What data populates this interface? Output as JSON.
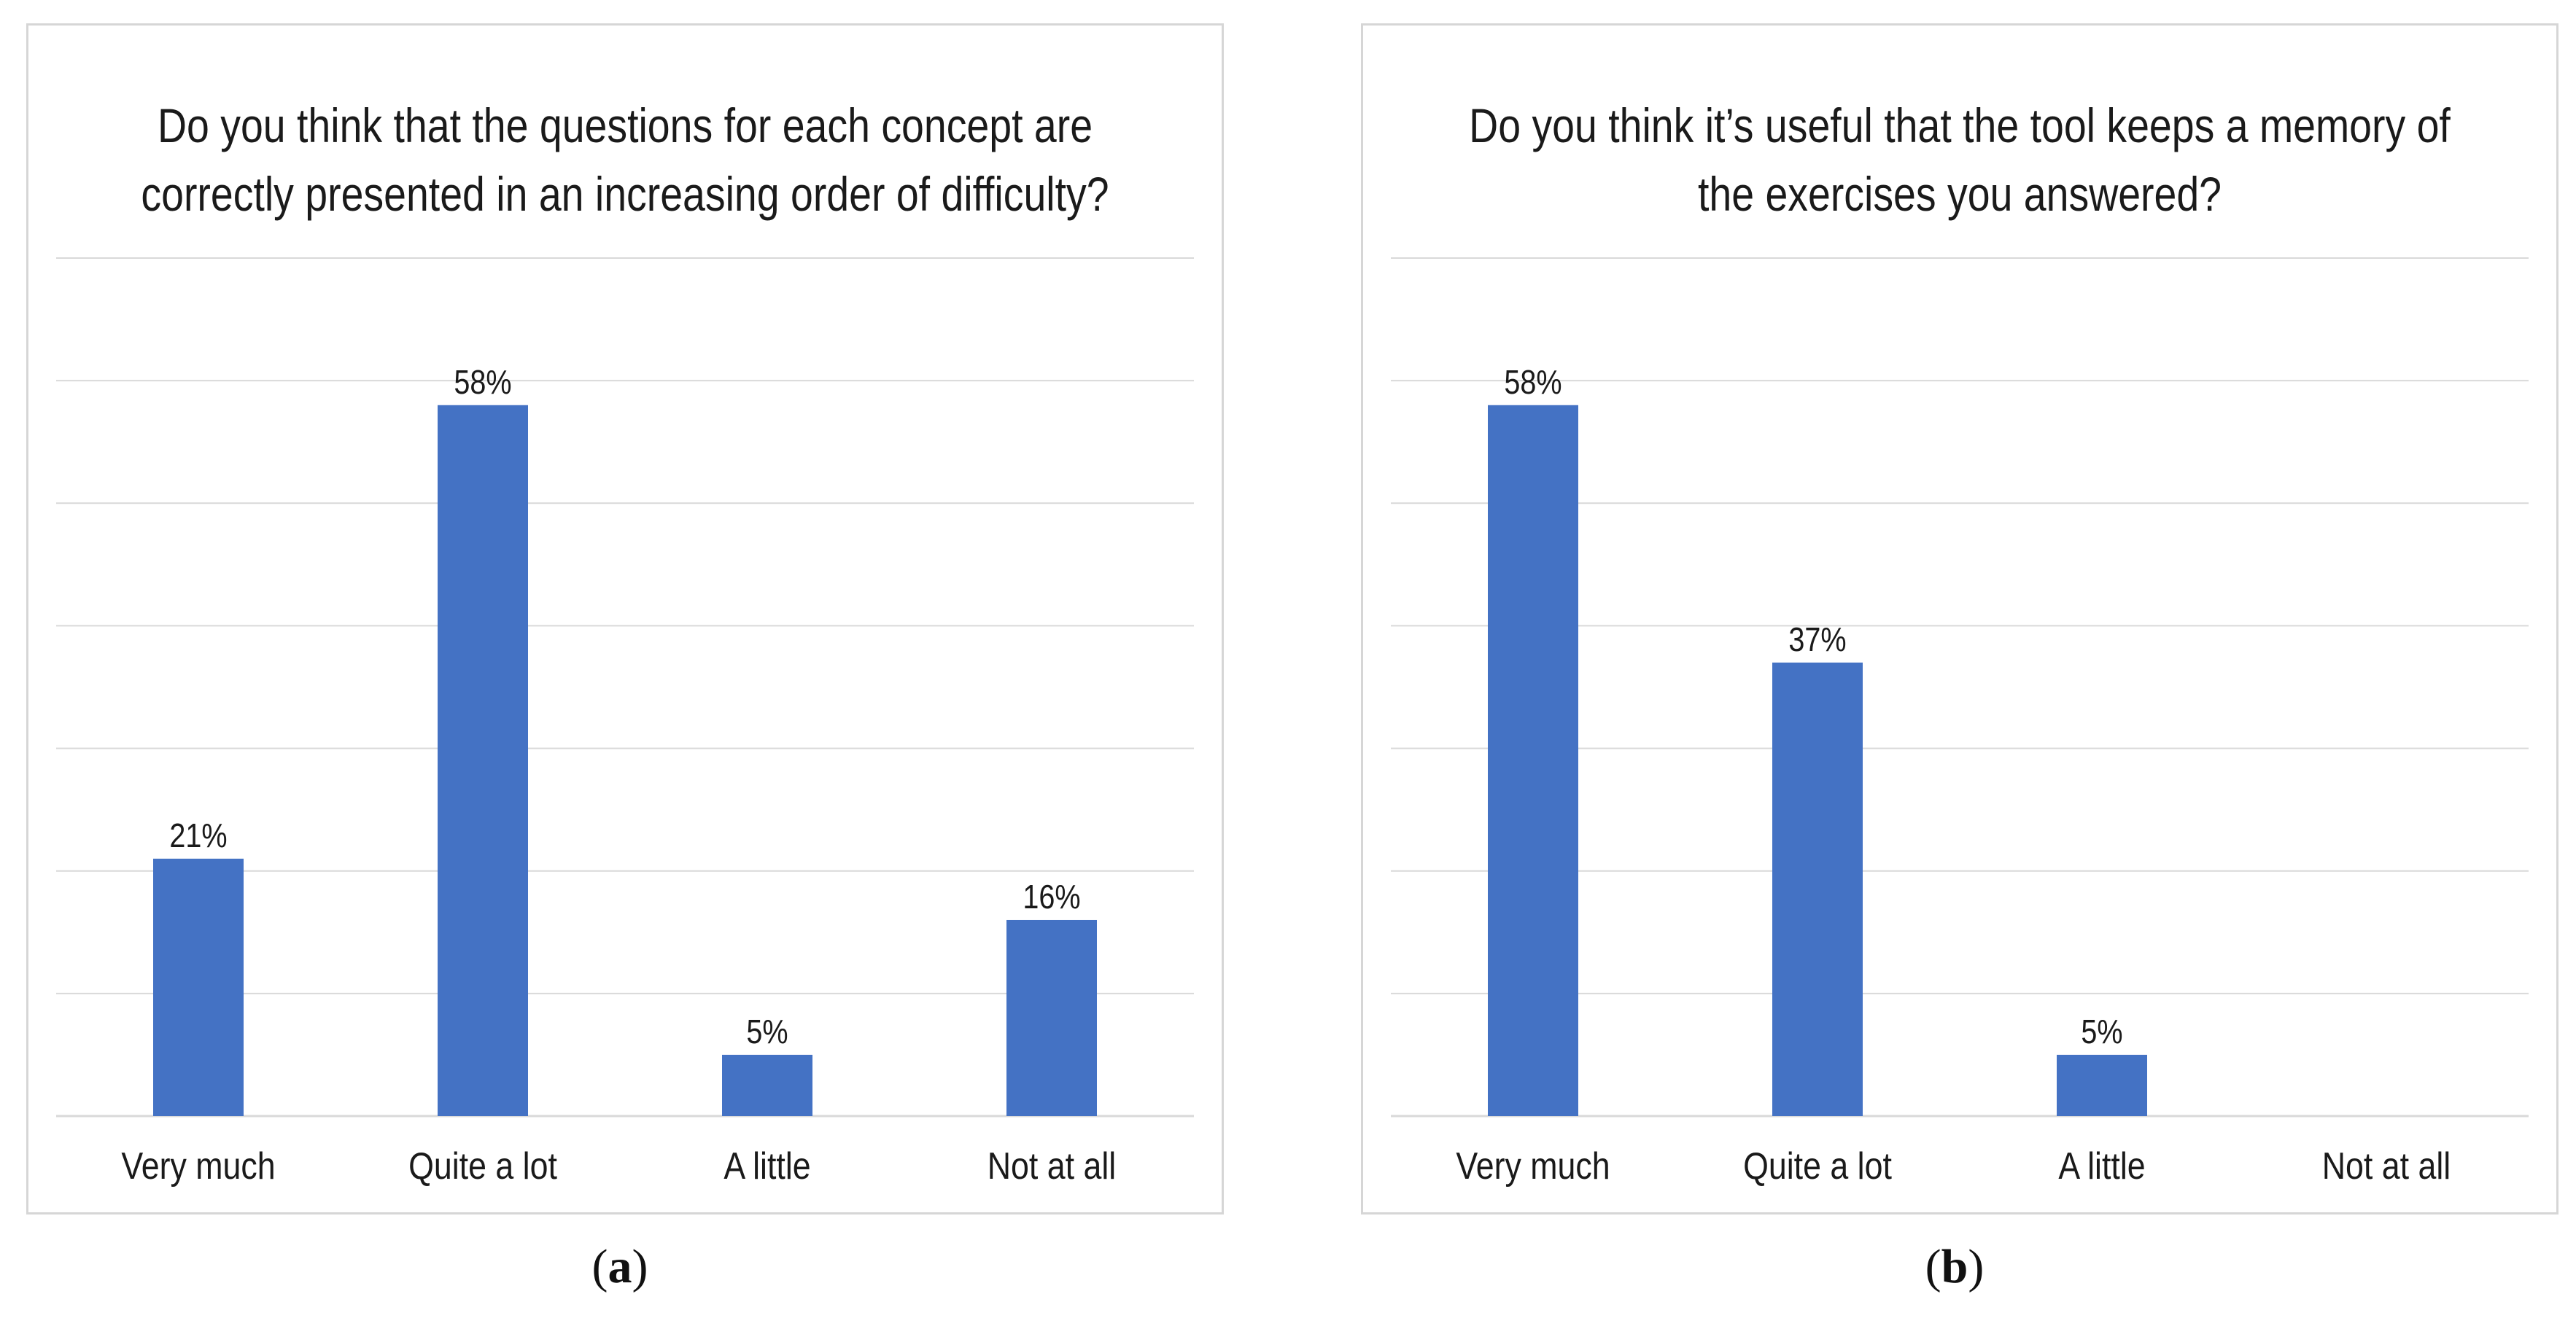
{
  "chart_data": [
    {
      "type": "bar",
      "title_lines": [
        "Do you think that the questions for each concept are",
        "correctly presented in an increasing order of difficulty?"
      ],
      "categories": [
        "Very much",
        "Quite a lot",
        "A little",
        "Not at all"
      ],
      "values": [
        21,
        58,
        5,
        16
      ],
      "data_labels": [
        "21%",
        "58%",
        "5%",
        "16%"
      ],
      "ylim": [
        0,
        70
      ],
      "gridline_step": 10,
      "bar_color": "#4472C4",
      "grid_color": "#d9d9d9",
      "caption_letter": "a"
    },
    {
      "type": "bar",
      "title_lines": [
        "Do you think it’s useful that the tool keeps a memory of",
        "the exercises you answered?"
      ],
      "categories": [
        "Very much",
        "Quite a lot",
        "A little",
        "Not at all"
      ],
      "values": [
        58,
        37,
        5,
        0
      ],
      "data_labels": [
        "58%",
        "37%",
        "5%",
        ""
      ],
      "ylim": [
        0,
        70
      ],
      "gridline_step": 10,
      "bar_color": "#4472C4",
      "grid_color": "#d9d9d9",
      "caption_letter": "b"
    }
  ],
  "captions": [
    {
      "open": "(",
      "letter": "a",
      "close": ")"
    },
    {
      "open": "(",
      "letter": "b",
      "close": ")"
    }
  ]
}
